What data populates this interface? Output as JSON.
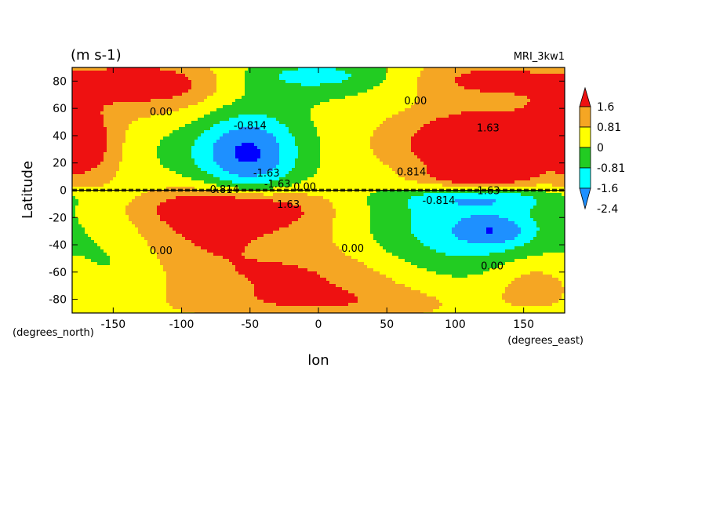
{
  "chart_data": {
    "type": "heatmap",
    "units_label": "(m s-1)",
    "model_label": "MRI_3kw1",
    "xlabel": "lon",
    "ylabel": "Latitude",
    "x_units": "(degrees_east)",
    "y_units": "(degrees_north)",
    "xlim": [
      -180,
      180
    ],
    "ylim": [
      -90,
      90
    ],
    "x_ticks": [
      "-150",
      "-100",
      "-50",
      "0",
      "50",
      "100",
      "150"
    ],
    "x_tick_values": [
      -150,
      -100,
      -50,
      0,
      50,
      100,
      150
    ],
    "y_ticks": [
      "80",
      "60",
      "40",
      "20",
      "0",
      "-20",
      "-40",
      "-60",
      "-80"
    ],
    "y_tick_values": [
      80,
      60,
      40,
      20,
      0,
      -20,
      -40,
      -60,
      -80
    ],
    "colorbar": {
      "labels": [
        "1.6",
        "0.81",
        "0",
        "-0.81",
        "-1.6",
        "-2.4"
      ],
      "colors": [
        "#ee1111",
        "#f5a623",
        "#ffff00",
        "#22cc22",
        "#00ffff",
        "#1e90ff",
        "#0000ff"
      ]
    },
    "contour_labels": [
      {
        "text": "0.00",
        "lon": -115,
        "lat": 55
      },
      {
        "text": "-0.814",
        "lon": -50,
        "lat": 45
      },
      {
        "text": "-1.63",
        "lon": -38,
        "lat": 10
      },
      {
        "text": "-0.814",
        "lon": -70,
        "lat": -2
      },
      {
        "text": "-1.63",
        "lon": -30,
        "lat": 2
      },
      {
        "text": "0.00",
        "lon": -10,
        "lat": 0
      },
      {
        "text": "1.63",
        "lon": -22,
        "lat": -13
      },
      {
        "text": "0.00",
        "lon": -115,
        "lat": -47
      },
      {
        "text": "0.00",
        "lon": 25,
        "lat": -45
      },
      {
        "text": "0.00",
        "lon": 71,
        "lat": 63
      },
      {
        "text": "1.63",
        "lon": 124,
        "lat": 43
      },
      {
        "text": "0.814",
        "lon": 68,
        "lat": 11
      },
      {
        "text": "-0.814",
        "lon": 88,
        "lat": -10
      },
      {
        "text": "-1.63",
        "lon": 123,
        "lat": -3
      },
      {
        "text": "0.00",
        "lon": 127,
        "lat": -58
      }
    ],
    "fields": {
      "base_level": 0.4,
      "features": [
        {
          "lon": -60,
          "lat": -12,
          "sx": 40,
          "sy": 10,
          "amp": 2.2
        },
        {
          "lon": -40,
          "lat": -35,
          "sx": 55,
          "sy": 20,
          "amp": 1.0
        },
        {
          "lon": -90,
          "lat": -30,
          "sx": 30,
          "sy": 25,
          "amp": 0.6
        },
        {
          "lon": 120,
          "lat": 30,
          "sx": 30,
          "sy": 18,
          "amp": 2.4
        },
        {
          "lon": 120,
          "lat": 8,
          "sx": 35,
          "sy": 6,
          "amp": 1.4
        },
        {
          "lon": 80,
          "lat": 35,
          "sx": 45,
          "sy": 20,
          "amp": 0.9
        },
        {
          "lon": -50,
          "lat": 25,
          "sx": 25,
          "sy": 25,
          "amp": -2.2
        },
        {
          "lon": -70,
          "lat": 30,
          "sx": 40,
          "sy": 20,
          "amp": -0.9
        },
        {
          "lon": 110,
          "lat": -28,
          "sx": 45,
          "sy": 25,
          "amp": -1.8
        },
        {
          "lon": 130,
          "lat": -30,
          "sx": 18,
          "sy": 8,
          "amp": -1.2
        },
        {
          "lon": 120,
          "lat": -5,
          "sx": 40,
          "sy": 6,
          "amp": -1.3
        },
        {
          "lon": -170,
          "lat": 30,
          "sx": 18,
          "sy": 18,
          "amp": 1.6
        },
        {
          "lon": -130,
          "lat": 80,
          "sx": 40,
          "sy": 10,
          "amp": 1.3
        },
        {
          "lon": 120,
          "lat": 82,
          "sx": 40,
          "sy": 10,
          "amp": 1.3
        },
        {
          "lon": -115,
          "lat": 70,
          "sx": 60,
          "sy": 16,
          "amp": 0.9
        },
        {
          "lon": 0,
          "lat": 85,
          "sx": 40,
          "sy": 8,
          "amp": -1.2
        },
        {
          "lon": -20,
          "lat": 75,
          "sx": 50,
          "sy": 12,
          "amp": -0.6
        },
        {
          "lon": 0,
          "lat": -82,
          "sx": 70,
          "sy": 10,
          "amp": 1.2
        },
        {
          "lon": -10,
          "lat": -62,
          "sx": 55,
          "sy": 10,
          "amp": 0.8
        },
        {
          "lon": 160,
          "lat": -65,
          "sx": 25,
          "sy": 15,
          "amp": 1.1
        },
        {
          "lon": 170,
          "lat": 50,
          "sx": 20,
          "sy": 15,
          "amp": 0.8
        },
        {
          "lon": -160,
          "lat": -55,
          "sx": 30,
          "sy": 15,
          "amp": -0.6
        },
        {
          "lon": 40,
          "lat": -20,
          "sx": 35,
          "sy": 20,
          "amp": -0.3
        },
        {
          "lon": 20,
          "lat": 40,
          "sx": 40,
          "sy": 20,
          "amp": -0.2
        }
      ]
    }
  }
}
